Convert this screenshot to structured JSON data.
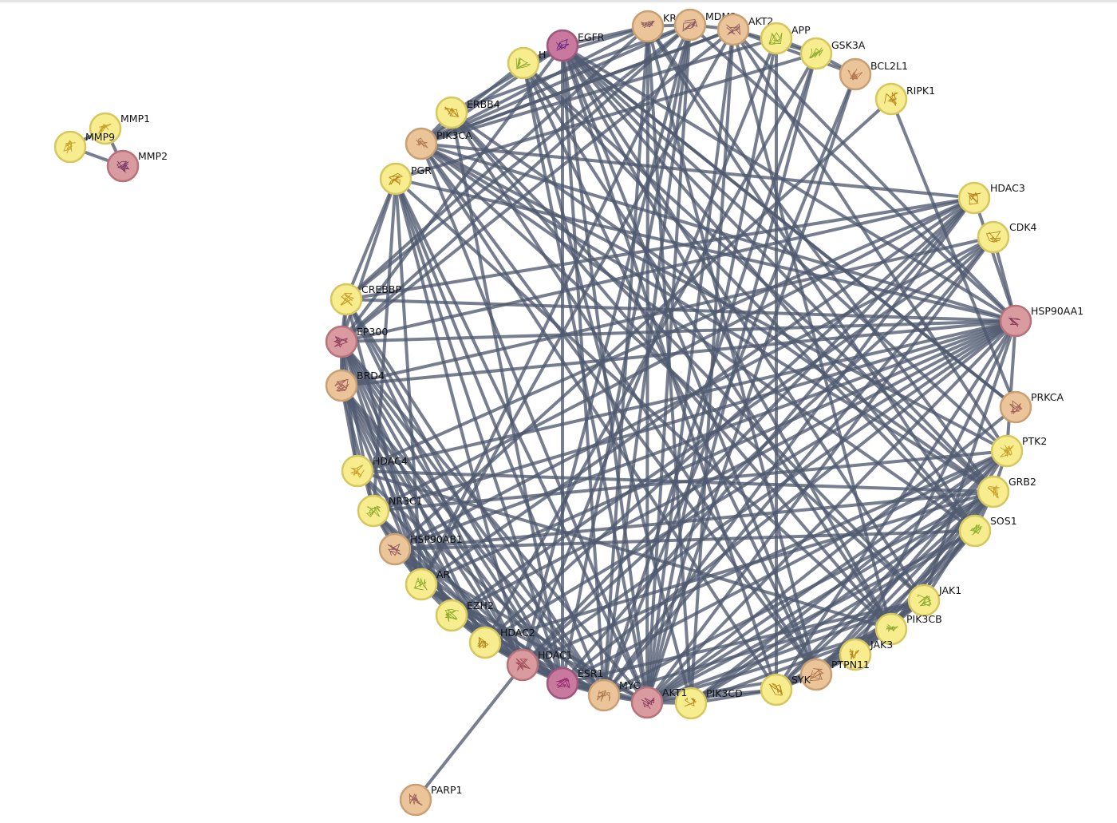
{
  "network": {
    "colors": {
      "yellow": "#f7ec8e",
      "tan": "#ecc49a",
      "pink": "#d99ba0",
      "magenta": "#c9789e",
      "edge": "#4f5a6f"
    },
    "nodes": [
      {
        "id": "MMP1",
        "label": "MMP1",
        "color": "yellow"
      },
      {
        "id": "MMP9",
        "label": "MMP9",
        "color": "yellow"
      },
      {
        "id": "MMP2",
        "label": "MMP2",
        "color": "pink"
      },
      {
        "id": "EGFR",
        "label": "EGFR",
        "color": "magenta"
      },
      {
        "id": "HRAS",
        "label": "H",
        "color": "yellow"
      },
      {
        "id": "KRAS",
        "label": "KRA",
        "color": "tan"
      },
      {
        "id": "MDM2",
        "label": "MDM2",
        "color": "tan"
      },
      {
        "id": "AKT2",
        "label": "AKT2",
        "color": "tan"
      },
      {
        "id": "APP",
        "label": "APP",
        "color": "yellow"
      },
      {
        "id": "GSK3A",
        "label": "GSK3A",
        "color": "yellow"
      },
      {
        "id": "BCL2L1",
        "label": "BCL2L1",
        "color": "tan"
      },
      {
        "id": "RIPK1",
        "label": "RIPK1",
        "color": "yellow"
      },
      {
        "id": "ERBB4",
        "label": "ERBB4",
        "color": "yellow"
      },
      {
        "id": "PIK3CA",
        "label": "PIK3CA",
        "color": "tan"
      },
      {
        "id": "PGR",
        "label": "PGR",
        "color": "yellow"
      },
      {
        "id": "HDAC3",
        "label": "HDAC3",
        "color": "yellow"
      },
      {
        "id": "CDK4",
        "label": "CDK4",
        "color": "yellow"
      },
      {
        "id": "CREBBP",
        "label": "CREBBP",
        "color": "yellow"
      },
      {
        "id": "EP300",
        "label": "EP300",
        "color": "pink"
      },
      {
        "id": "HSP90AA1",
        "label": "HSP90AA1",
        "color": "pink"
      },
      {
        "id": "BRD4",
        "label": "BRD4",
        "color": "tan"
      },
      {
        "id": "PRKCA",
        "label": "PRKCA",
        "color": "tan"
      },
      {
        "id": "PTK2",
        "label": "PTK2",
        "color": "yellow"
      },
      {
        "id": "HDAC4",
        "label": "HDAC4",
        "color": "yellow"
      },
      {
        "id": "GRB2",
        "label": "GRB2",
        "color": "yellow"
      },
      {
        "id": "NR3C1",
        "label": "NR3C1",
        "color": "yellow"
      },
      {
        "id": "SOS1",
        "label": "SOS1",
        "color": "yellow"
      },
      {
        "id": "HSP90AB1",
        "label": "HSP90AB1",
        "color": "tan"
      },
      {
        "id": "AR",
        "label": "AR",
        "color": "yellow"
      },
      {
        "id": "JAK1",
        "label": "JAK1",
        "color": "yellow"
      },
      {
        "id": "EZH2",
        "label": "EZH2",
        "color": "yellow"
      },
      {
        "id": "PIK3CB",
        "label": "PIK3CB",
        "color": "yellow"
      },
      {
        "id": "HDAC2",
        "label": "HDAC2",
        "color": "yellow"
      },
      {
        "id": "JAK3",
        "label": "JAK3",
        "color": "yellow"
      },
      {
        "id": "PTPN11",
        "label": "PTPN11",
        "color": "tan"
      },
      {
        "id": "HDAC1",
        "label": "HDAC1",
        "color": "pink"
      },
      {
        "id": "SYK",
        "label": "SYK",
        "color": "yellow"
      },
      {
        "id": "ESR1",
        "label": "ESR1",
        "color": "magenta"
      },
      {
        "id": "PIK3CD",
        "label": "PIK3CD",
        "color": "yellow"
      },
      {
        "id": "MYC",
        "label": "MYC",
        "color": "tan"
      },
      {
        "id": "AKT1",
        "label": "AKT1",
        "color": "pink"
      },
      {
        "id": "PARP1",
        "label": "PARP1",
        "color": "tan"
      }
    ],
    "edges": [
      [
        "MMP9",
        "MMP1"
      ],
      [
        "MMP9",
        "MMP2"
      ],
      [
        "MMP1",
        "MMP2"
      ],
      [
        "PARP1",
        "HDAC1"
      ],
      [
        "EGFR",
        "HRAS"
      ],
      [
        "EGFR",
        "KRAS"
      ],
      [
        "EGFR",
        "ERBB4"
      ],
      [
        "EGFR",
        "PIK3CA"
      ],
      [
        "EGFR",
        "GRB2"
      ],
      [
        "EGFR",
        "SOS1"
      ],
      [
        "EGFR",
        "PTK2"
      ],
      [
        "EGFR",
        "PIK3CB"
      ],
      [
        "EGFR",
        "PTPN11"
      ],
      [
        "EGFR",
        "ESR1"
      ],
      [
        "EGFR",
        "AKT1"
      ],
      [
        "EGFR",
        "HSP90AA1"
      ],
      [
        "EGFR",
        "JAK1"
      ],
      [
        "EGFR",
        "PRKCA"
      ],
      [
        "EGFR",
        "SYK"
      ],
      [
        "EGFR",
        "MYC"
      ],
      [
        "EGFR",
        "EP300"
      ],
      [
        "HRAS",
        "KRAS"
      ],
      [
        "HRAS",
        "PIK3CA"
      ],
      [
        "HRAS",
        "GRB2"
      ],
      [
        "HRAS",
        "SOS1"
      ],
      [
        "HRAS",
        "AKT1"
      ],
      [
        "HRAS",
        "PIK3CD"
      ],
      [
        "HRAS",
        "PTPN11"
      ],
      [
        "HRAS",
        "PIK3CB"
      ],
      [
        "KRAS",
        "PIK3CA"
      ],
      [
        "KRAS",
        "SOS1"
      ],
      [
        "KRAS",
        "AKT1"
      ],
      [
        "KRAS",
        "GRB2"
      ],
      [
        "KRAS",
        "MYC"
      ],
      [
        "KRAS",
        "PIK3CD"
      ],
      [
        "KRAS",
        "PTPN11"
      ],
      [
        "KRAS",
        "MDM2"
      ],
      [
        "MDM2",
        "AKT1"
      ],
      [
        "MDM2",
        "HDAC1"
      ],
      [
        "MDM2",
        "EP300"
      ],
      [
        "MDM2",
        "AR"
      ],
      [
        "MDM2",
        "HSP90AA1"
      ],
      [
        "MDM2",
        "MYC"
      ],
      [
        "MDM2",
        "ESR1"
      ],
      [
        "MDM2",
        "AKT2"
      ],
      [
        "MDM2",
        "CREBBP"
      ],
      [
        "MDM2",
        "PIK3CA"
      ],
      [
        "AKT2",
        "GSK3A"
      ],
      [
        "AKT2",
        "PIK3CA"
      ],
      [
        "AKT2",
        "PIK3CB"
      ],
      [
        "AKT2",
        "HSP90AA1"
      ],
      [
        "AKT2",
        "PIK3CD"
      ],
      [
        "AKT2",
        "BCL2L1"
      ],
      [
        "AKT2",
        "AR"
      ],
      [
        "AKT2",
        "PTK2"
      ],
      [
        "AKT2",
        "AKT1"
      ],
      [
        "APP",
        "GSK3A"
      ],
      [
        "APP",
        "AKT1"
      ],
      [
        "APP",
        "SYK"
      ],
      [
        "APP",
        "HDAC1"
      ],
      [
        "GSK3A",
        "AKT1"
      ],
      [
        "GSK3A",
        "MYC"
      ],
      [
        "GSK3A",
        "HDAC2"
      ],
      [
        "GSK3A",
        "BCL2L1"
      ],
      [
        "BCL2L1",
        "AKT1"
      ],
      [
        "BCL2L1",
        "MYC"
      ],
      [
        "RIPK1",
        "HSP90AB1"
      ],
      [
        "RIPK1",
        "PRKCA"
      ],
      [
        "ERBB4",
        "PIK3CA"
      ],
      [
        "ERBB4",
        "GRB2"
      ],
      [
        "ERBB4",
        "PTPN11"
      ],
      [
        "ERBB4",
        "ESR1"
      ],
      [
        "ERBB4",
        "PIK3CB"
      ],
      [
        "ERBB4",
        "JAK1"
      ],
      [
        "ERBB4",
        "MDM2"
      ],
      [
        "PIK3CA",
        "AKT1"
      ],
      [
        "PIK3CA",
        "HSP90AA1"
      ],
      [
        "PIK3CA",
        "PTK2"
      ],
      [
        "PIK3CA",
        "GRB2"
      ],
      [
        "PIK3CA",
        "SOS1"
      ],
      [
        "PIK3CA",
        "JAK1"
      ],
      [
        "PIK3CA",
        "SYK"
      ],
      [
        "PIK3CA",
        "PTPN11"
      ],
      [
        "PIK3CA",
        "APP"
      ],
      [
        "PIK3CA",
        "AKT2"
      ],
      [
        "PIK3CA",
        "HDAC3"
      ],
      [
        "PGR",
        "ESR1"
      ],
      [
        "PGR",
        "AKT1"
      ],
      [
        "PGR",
        "HSP90AA1"
      ],
      [
        "PGR",
        "EP300"
      ],
      [
        "PGR",
        "CREBBP"
      ],
      [
        "PGR",
        "HDAC1"
      ],
      [
        "PGR",
        "MYC"
      ],
      [
        "PGR",
        "NR3C1"
      ],
      [
        "PGR",
        "AR"
      ],
      [
        "PGR",
        "GSK3A"
      ],
      [
        "PGR",
        "PIK3CB"
      ],
      [
        "HDAC3",
        "EP300"
      ],
      [
        "HDAC3",
        "HDAC1"
      ],
      [
        "HDAC3",
        "HDAC2"
      ],
      [
        "HDAC3",
        "HDAC4"
      ],
      [
        "HDAC3",
        "NR3C1"
      ],
      [
        "HDAC3",
        "ESR1"
      ],
      [
        "HDAC3",
        "AR"
      ],
      [
        "HDAC3",
        "MYC"
      ],
      [
        "HDAC3",
        "CREBBP"
      ],
      [
        "CDK4",
        "HSP90AA1"
      ],
      [
        "CDK4",
        "MYC"
      ],
      [
        "CDK4",
        "EZH2"
      ],
      [
        "CDK4",
        "BRD4"
      ],
      [
        "CDK4",
        "HDAC1"
      ],
      [
        "CDK4",
        "AKT1"
      ],
      [
        "CDK4",
        "HSP90AB1"
      ],
      [
        "CREBBP",
        "EP300"
      ],
      [
        "CREBBP",
        "BRD4"
      ],
      [
        "CREBBP",
        "HDAC1"
      ],
      [
        "CREBBP",
        "ESR1"
      ],
      [
        "CREBBP",
        "AR"
      ],
      [
        "CREBBP",
        "HSP90AA1"
      ],
      [
        "CREBBP",
        "MYC"
      ],
      [
        "CREBBP",
        "KRAS"
      ],
      [
        "EP300",
        "BRD4"
      ],
      [
        "EP300",
        "HDAC1"
      ],
      [
        "EP300",
        "HDAC2"
      ],
      [
        "EP300",
        "ESR1"
      ],
      [
        "EP300",
        "AR"
      ],
      [
        "EP300",
        "NR3C1"
      ],
      [
        "EP300",
        "MYC"
      ],
      [
        "EP300",
        "HSP90AA1"
      ],
      [
        "EP300",
        "HDAC4"
      ],
      [
        "EP300",
        "EZH2"
      ],
      [
        "EP300",
        "AKT1"
      ],
      [
        "EP300",
        "AKT2"
      ],
      [
        "HSP90AA1",
        "BRD4"
      ],
      [
        "HSP90AA1",
        "ESR1"
      ],
      [
        "HSP90AA1",
        "AR"
      ],
      [
        "HSP90AA1",
        "NR3C1"
      ],
      [
        "HSP90AA1",
        "AKT1"
      ],
      [
        "HSP90AA1",
        "HDAC1"
      ],
      [
        "HSP90AA1",
        "HSP90AB1"
      ],
      [
        "HSP90AA1",
        "JAK1"
      ],
      [
        "HSP90AA1",
        "PTK2"
      ],
      [
        "HSP90AA1",
        "SYK"
      ],
      [
        "HSP90AA1",
        "HDAC2"
      ],
      [
        "HSP90AA1",
        "HDAC4"
      ],
      [
        "HSP90AA1",
        "HDAC3"
      ],
      [
        "HSP90AA1",
        "EZH2"
      ],
      [
        "BRD4",
        "HDAC1"
      ],
      [
        "BRD4",
        "HDAC2"
      ],
      [
        "BRD4",
        "MYC"
      ],
      [
        "BRD4",
        "EZH2"
      ],
      [
        "BRD4",
        "ESR1"
      ],
      [
        "BRD4",
        "AR"
      ],
      [
        "BRD4",
        "HDAC4"
      ],
      [
        "BRD4",
        "NR3C1"
      ],
      [
        "PRKCA",
        "AKT1"
      ],
      [
        "PRKCA",
        "EGFR"
      ],
      [
        "PTK2",
        "GRB2"
      ],
      [
        "PTK2",
        "AKT1"
      ],
      [
        "PTK2",
        "PIK3CB"
      ],
      [
        "PTK2",
        "SYK"
      ],
      [
        "PTK2",
        "PIK3CD"
      ],
      [
        "PTK2",
        "PTPN11"
      ],
      [
        "PTK2",
        "HDAC1"
      ],
      [
        "PTK2",
        "ESR1"
      ],
      [
        "HDAC4",
        "HDAC1"
      ],
      [
        "HDAC4",
        "MYC"
      ],
      [
        "HDAC4",
        "GRB2"
      ],
      [
        "GRB2",
        "SOS1"
      ],
      [
        "GRB2",
        "JAK1"
      ],
      [
        "GRB2",
        "PTPN11"
      ],
      [
        "GRB2",
        "AKT1"
      ],
      [
        "GRB2",
        "PIK3CD"
      ],
      [
        "GRB2",
        "SYK"
      ],
      [
        "GRB2",
        "PIK3CB"
      ],
      [
        "GRB2",
        "HSP90AB1"
      ],
      [
        "GRB2",
        "JAK3"
      ],
      [
        "GRB2",
        "MYC"
      ],
      [
        "GRB2",
        "HDAC2"
      ],
      [
        "NR3C1",
        "HDAC1"
      ],
      [
        "NR3C1",
        "ESR1"
      ],
      [
        "NR3C1",
        "HSP90AB1"
      ],
      [
        "NR3C1",
        "AR"
      ],
      [
        "NR3C1",
        "HDAC2"
      ],
      [
        "NR3C1",
        "PTK2"
      ],
      [
        "SOS1",
        "PTPN11"
      ],
      [
        "SOS1",
        "AKT1"
      ],
      [
        "SOS1",
        "PIK3CD"
      ],
      [
        "SOS1",
        "JAK3"
      ],
      [
        "SOS1",
        "PIK3CB"
      ],
      [
        "SOS1",
        "HSP90AB1"
      ],
      [
        "HSP90AB1",
        "AR"
      ],
      [
        "HSP90AB1",
        "HDAC1"
      ],
      [
        "HSP90AB1",
        "AKT1"
      ],
      [
        "HSP90AB1",
        "ESR1"
      ],
      [
        "HSP90AB1",
        "HDAC2"
      ],
      [
        "AR",
        "ESR1"
      ],
      [
        "AR",
        "AKT1"
      ],
      [
        "AR",
        "EZH2"
      ],
      [
        "AR",
        "MYC"
      ],
      [
        "AR",
        "HDAC1"
      ],
      [
        "JAK1",
        "PTPN11"
      ],
      [
        "JAK1",
        "SYK"
      ],
      [
        "JAK1",
        "JAK3"
      ],
      [
        "JAK1",
        "AKT1"
      ],
      [
        "JAK1",
        "MYC"
      ],
      [
        "JAK1",
        "ESR1"
      ],
      [
        "EZH2",
        "HDAC1"
      ],
      [
        "EZH2",
        "HDAC2"
      ],
      [
        "EZH2",
        "MYC"
      ],
      [
        "PIK3CB",
        "PIK3CD"
      ],
      [
        "PIK3CB",
        "AKT1"
      ],
      [
        "PIK3CB",
        "SYK"
      ],
      [
        "PIK3CB",
        "HDAC4"
      ],
      [
        "PIK3CB",
        "JAK3"
      ],
      [
        "HDAC2",
        "HDAC1"
      ],
      [
        "HDAC2",
        "MYC"
      ],
      [
        "HDAC2",
        "ESR1"
      ],
      [
        "JAK3",
        "SYK"
      ],
      [
        "JAK3",
        "PTPN11"
      ],
      [
        "JAK3",
        "HSP90AA1"
      ],
      [
        "PTPN11",
        "SYK"
      ],
      [
        "PTPN11",
        "AKT1"
      ],
      [
        "HDAC1",
        "ESR1"
      ],
      [
        "HDAC1",
        "MYC"
      ],
      [
        "HDAC1",
        "AKT1"
      ],
      [
        "SYK",
        "AKT1"
      ],
      [
        "SYK",
        "PIK3CD"
      ],
      [
        "ESR1",
        "MYC"
      ],
      [
        "ESR1",
        "AKT1"
      ],
      [
        "PIK3CD",
        "AKT1"
      ],
      [
        "MYC",
        "AKT1"
      ]
    ]
  }
}
